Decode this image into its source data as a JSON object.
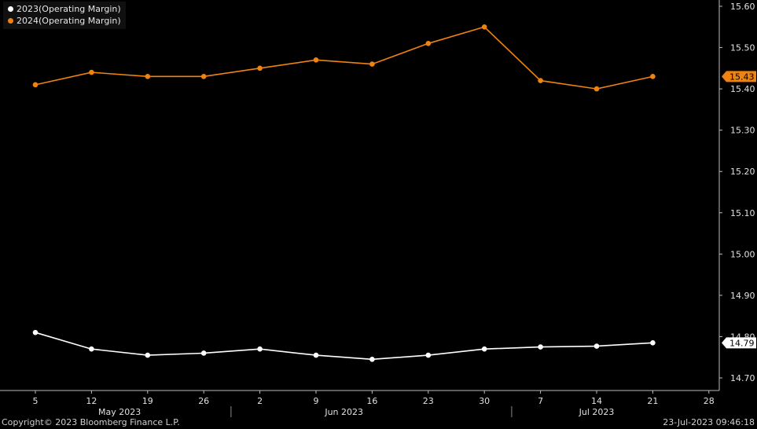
{
  "chart_data": {
    "type": "line",
    "x_ticks": [
      "5",
      "12",
      "19",
      "26",
      "2",
      "9",
      "16",
      "23",
      "30",
      "7",
      "14",
      "21",
      "28"
    ],
    "months": [
      {
        "label": "May 2023",
        "center_tick": 1.5
      },
      {
        "label": "Jun 2023",
        "center_tick": 5.5
      },
      {
        "label": "Jul 2023",
        "center_tick": 10
      }
    ],
    "month_separators_after_tick": [
      3,
      8
    ],
    "y_ticks": [
      "15.60",
      "15.50",
      "15.40",
      "15.30",
      "15.20",
      "15.10",
      "15.00",
      "14.90",
      "14.80",
      "14.70"
    ],
    "ylim": [
      14.68,
      15.61
    ],
    "grid": false,
    "legend_position": "top-left",
    "series": [
      {
        "name": "2023(Operating Margin)",
        "color": "#ffffff",
        "values": [
          14.81,
          14.77,
          14.755,
          14.76,
          14.77,
          14.755,
          14.745,
          14.755,
          14.77,
          14.775,
          14.777,
          14.785
        ],
        "last_label": "14.79"
      },
      {
        "name": "2024(Operating Margin)",
        "color": "#f0820f",
        "values": [
          15.41,
          15.44,
          15.43,
          15.43,
          15.45,
          15.47,
          15.46,
          15.51,
          15.55,
          15.42,
          15.4,
          15.43
        ],
        "last_label": "15.43"
      }
    ]
  },
  "footer": {
    "copyright": "Copyright© 2023 Bloomberg Finance L.P.",
    "timestamp": "23-Jul-2023 09:46:18"
  }
}
